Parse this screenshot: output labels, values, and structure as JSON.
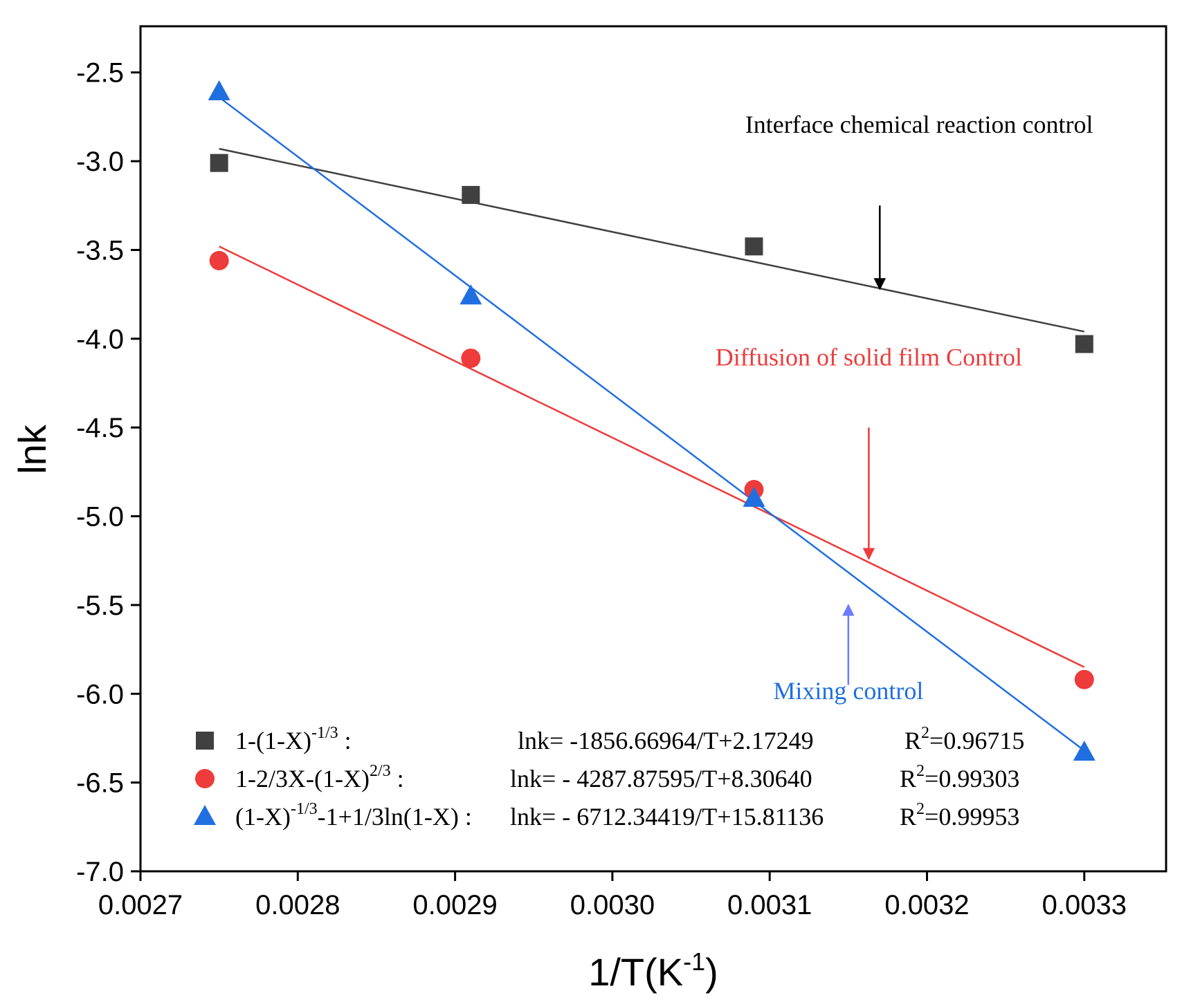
{
  "chart_data": {
    "type": "scatter",
    "xlabel": "1/T(K",
    "xlabel_sup": "-1",
    "xlabel_close": ")",
    "ylabel": "lnk",
    "xlim": [
      0.0027,
      0.003352
    ],
    "ylim": [
      -7.0,
      -2.24
    ],
    "xticks": [
      0.0027,
      0.0028,
      0.0029,
      0.003,
      0.0031,
      0.0032,
      0.0033
    ],
    "xtick_labels": [
      "0.0027",
      "0.0028",
      "0.0029",
      "0.0030",
      "0.0031",
      "0.0032",
      "0.0033"
    ],
    "yticks": [
      -2.5,
      -3.0,
      -3.5,
      -4.0,
      -4.5,
      -5.0,
      -5.5,
      -6.0,
      -6.5,
      -7.0
    ],
    "ytick_labels": [
      "-2.5",
      "-3.0",
      "-3.5",
      "-4.0",
      "-4.5",
      "-5.0",
      "-5.5",
      "-6.0",
      "-6.5",
      "-7.0"
    ],
    "series": [
      {
        "name": "1-(1-X)^-1/3",
        "marker": "square",
        "color": "#404040",
        "x": [
          0.00275,
          0.00291,
          0.00309,
          0.0033
        ],
        "y": [
          -3.01,
          -3.19,
          -3.48,
          -4.03
        ],
        "fit": {
          "x": [
            0.00275,
            0.0033
          ],
          "y": [
            -2.93,
            -3.96
          ]
        },
        "legend": {
          "base": "1-(1-X)",
          "sup": "-1/3",
          "suffix": " :",
          "equation": "lnk= -1856.66964/T+2.17249",
          "r2_base": "R",
          "r2_sup": "2",
          "r2_value": "=0.96715"
        }
      },
      {
        "name": "1-2/3X-(1-X)^2/3",
        "marker": "circle",
        "color": "#ee3b3b",
        "x": [
          0.00275,
          0.00291,
          0.00309,
          0.0033
        ],
        "y": [
          -3.56,
          -4.11,
          -4.85,
          -5.92
        ],
        "fit": {
          "x": [
            0.00275,
            0.0033
          ],
          "y": [
            -3.48,
            -5.85
          ]
        },
        "legend": {
          "base": "1-2/3X-(1-X)",
          "sup": "2/3",
          "suffix": " :",
          "equation": "lnk= - 4287.87595/T+8.30640",
          "r2_base": "R",
          "r2_sup": "2",
          "r2_value": "=0.99303"
        }
      },
      {
        "name": "(1-X)^-1/3-1+1/3ln(1-X)",
        "marker": "triangle",
        "color": "#1f6fe0",
        "x": [
          0.00275,
          0.00291,
          0.00309,
          0.0033
        ],
        "y": [
          -2.61,
          -3.76,
          -4.9,
          -6.33
        ],
        "fit": {
          "x": [
            0.00275,
            0.0033
          ],
          "y": [
            -2.64,
            -6.32
          ]
        },
        "legend": {
          "base": "(1-X)",
          "sup": "-1/3",
          "suffix": "-1+1/3ln(1-X) :",
          "equation": "lnk= - 6712.34419/T+15.81136",
          "r2_base": "R",
          "r2_sup": "2",
          "r2_value": "=0.99953"
        }
      }
    ],
    "annotations": [
      {
        "text": "Interface chemical reaction control",
        "color": "#000000",
        "text_x": 0.003195,
        "text_y": -2.84,
        "arrow_from": [
          0.00317,
          -3.25
        ],
        "arrow_to": [
          0.00317,
          -3.72
        ]
      },
      {
        "text": "Diffusion of solid film Control",
        "color": "#ee3b3b",
        "text_x": 0.003163,
        "text_y": -4.15,
        "arrow_from": [
          0.003163,
          -4.5
        ],
        "arrow_to": [
          0.003163,
          -5.24
        ]
      },
      {
        "text": "Mixing control",
        "color": "#1f6fe0",
        "text_x": 0.00315,
        "text_y": -6.03,
        "arrow_from": [
          0.00315,
          -5.95
        ],
        "arrow_to": [
          0.00315,
          -5.5
        ]
      }
    ]
  }
}
